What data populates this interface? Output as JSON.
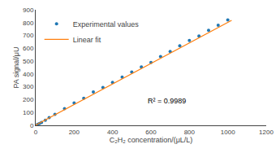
{
  "chart_data": {
    "type": "scatter",
    "xlabel": "C₂H₂ concentration/(μL/L)",
    "ylabel": "PA signal/μU",
    "annotation": "R² = 0.9989",
    "xlim": [
      0,
      1200
    ],
    "ylim": [
      0,
      900
    ],
    "xticks": [
      0,
      200,
      400,
      600,
      800,
      1000,
      1200
    ],
    "yticks": [
      0,
      100,
      200,
      300,
      400,
      500,
      600,
      700,
      800,
      900
    ],
    "grid": false,
    "legend": "upper left",
    "series": [
      {
        "name": "Experimental values",
        "type": "scatter",
        "marker": "circle",
        "x": [
          10,
          20,
          30,
          50,
          70,
          100,
          150,
          200,
          250,
          300,
          350,
          400,
          450,
          500,
          550,
          600,
          650,
          700,
          750,
          800,
          850,
          900,
          950,
          1000
        ],
        "values": [
          8,
          15,
          22,
          40,
          60,
          85,
          130,
          175,
          210,
          260,
          295,
          335,
          375,
          415,
          455,
          490,
          535,
          575,
          620,
          660,
          695,
          740,
          780,
          820
        ]
      },
      {
        "name": "Linear fit",
        "type": "line",
        "line_style": "solid",
        "x": [
          0,
          1020
        ],
        "values": [
          2,
          818
        ]
      }
    ]
  }
}
